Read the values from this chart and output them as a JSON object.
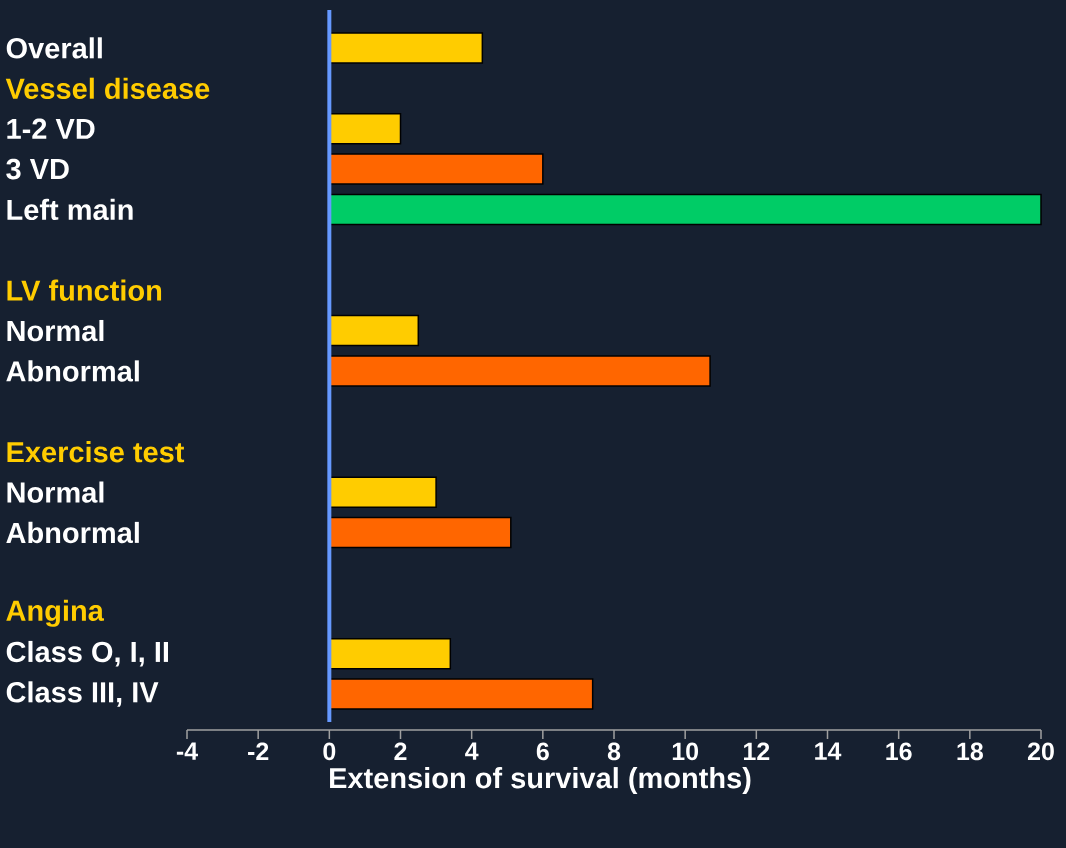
{
  "chart_data": {
    "type": "bar",
    "orientation": "horizontal",
    "categories": [
      "Overall",
      "Vessel disease",
      "1-2 VD",
      "3 VD",
      "Left main",
      null,
      "LV function",
      "Normal",
      "Abnormal",
      null,
      "Exercise test",
      "Normal",
      "Abnormal",
      null,
      "Angina",
      "Class O, I, II",
      "Class III, IV"
    ],
    "values": [
      4.3,
      null,
      2.0,
      6.0,
      20,
      null,
      null,
      2.5,
      10.7,
      null,
      null,
      3.0,
      5.1,
      null,
      null,
      3.4,
      7.4
    ],
    "colors": [
      "#ffcc00",
      null,
      "#ffcc00",
      "#ff6600",
      "#00cc66",
      null,
      null,
      "#ffcc00",
      "#ff6600",
      null,
      null,
      "#ffcc00",
      "#ff6600",
      null,
      null,
      "#ffcc00",
      "#ff6600"
    ],
    "xlabel": "Extension of survival (months)",
    "xlim": [
      -4,
      20
    ],
    "xticks": [
      -4,
      -2,
      0,
      2,
      4,
      6,
      8,
      10,
      12,
      14,
      16,
      18,
      20
    ],
    "ref_lines": [
      {
        "axis": "x",
        "value": 0,
        "color": "#6699ff"
      }
    ]
  }
}
